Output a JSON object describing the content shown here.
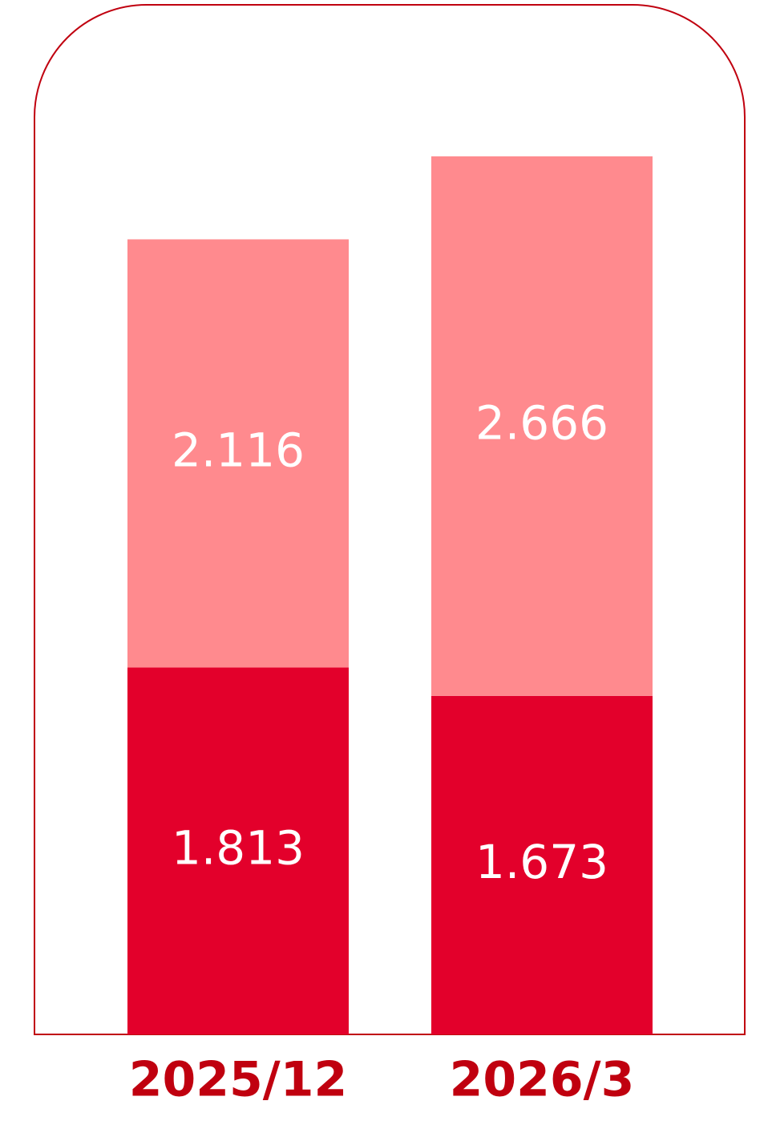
{
  "chart_data": {
    "type": "stacked-bar",
    "categories": [
      "2025/12",
      "2026/3"
    ],
    "series": [
      {
        "color": "#e3002b",
        "values": [
          1.813,
          1.673
        ]
      },
      {
        "color": "#ff8a8e",
        "values": [
          2.116,
          2.666
        ]
      }
    ],
    "label_color": "#ffffff",
    "category_color": "#c0000f",
    "frame_color": "#c0000f"
  }
}
